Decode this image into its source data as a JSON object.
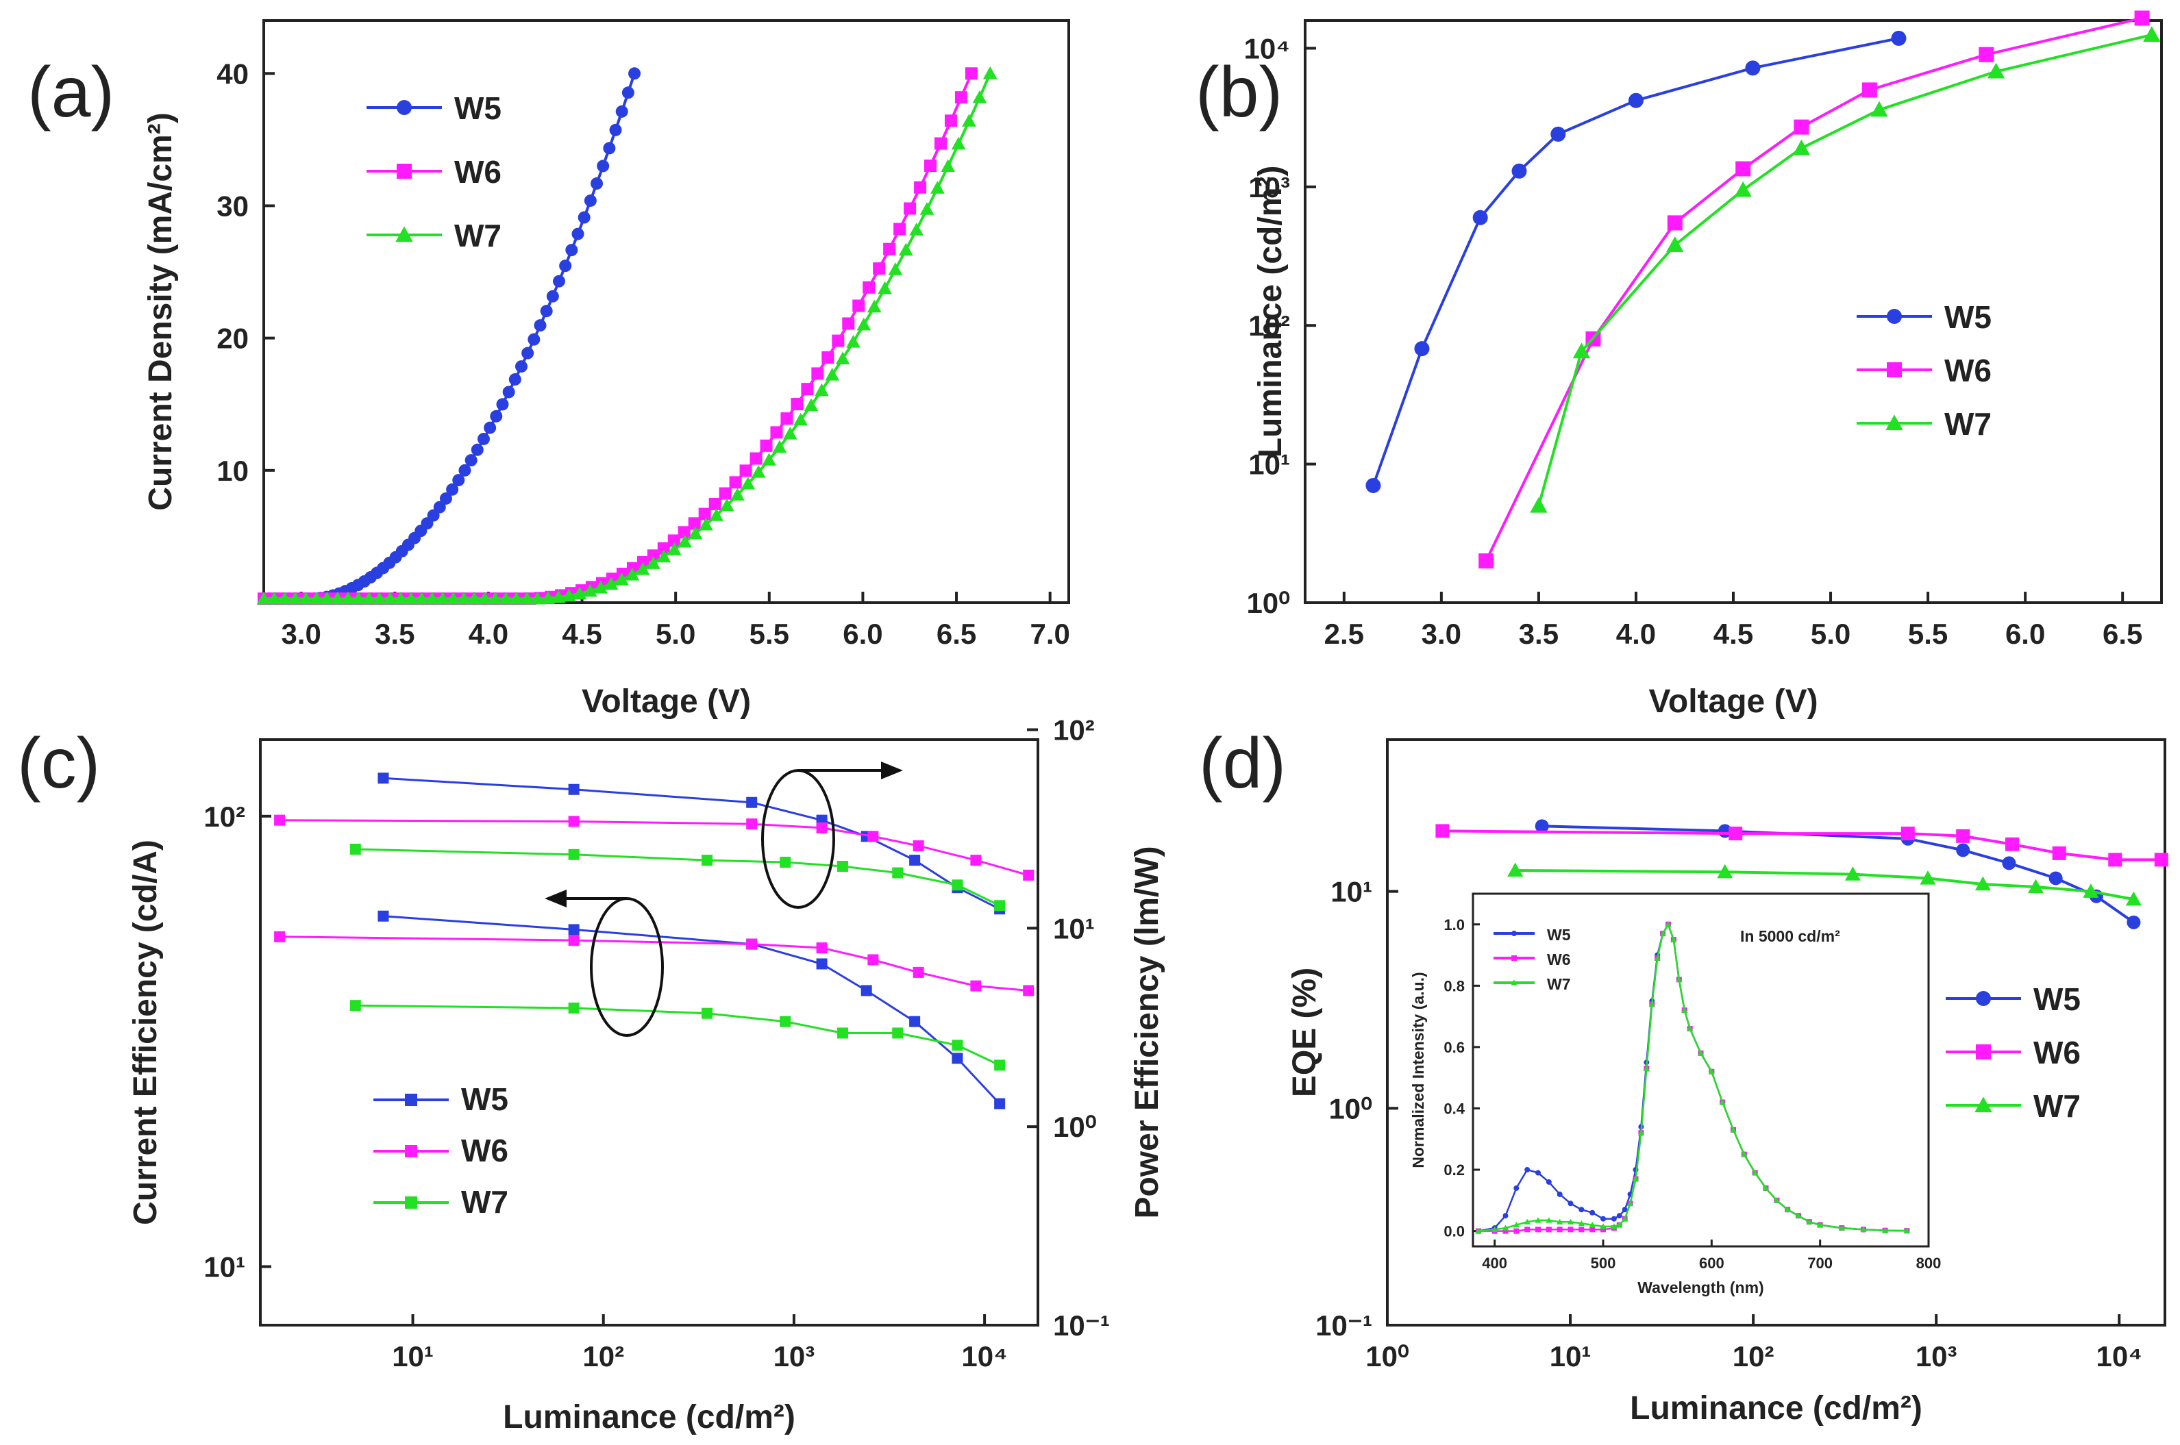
{
  "colors": {
    "W5": "#2a3fe0",
    "W6": "#ff1aff",
    "W7": "#22e022",
    "axis": "#222222"
  },
  "panels": [
    {
      "id": "a",
      "label": "(a)",
      "chart_data": {
        "type": "line",
        "xlabel": "Voltage (V)",
        "ylabel": "Current Density (mA/cm²)",
        "x_ticks": [
          "3.0",
          "3.5",
          "4.0",
          "4.5",
          "5.0",
          "5.5",
          "6.0",
          "6.5",
          "7.0"
        ],
        "y_ticks": [
          "10",
          "20",
          "30",
          "40"
        ],
        "xlim": [
          2.8,
          7.1
        ],
        "ylim": [
          0,
          44
        ],
        "legend_position": "top-left",
        "series": [
          {
            "name": "W5",
            "marker": "circle",
            "x_range": [
              2.8,
              4.78
            ],
            "knee": 3.05,
            "base": 0.3,
            "y_end": 40,
            "exp": 1.9,
            "n": 60
          },
          {
            "name": "W6",
            "marker": "square",
            "x_range": [
              2.8,
              6.58
            ],
            "knee": 4.2,
            "base": 0.3,
            "y_end": 40,
            "exp": 2.0,
            "n": 70
          },
          {
            "name": "W7",
            "marker": "triangle",
            "x_range": [
              2.8,
              6.68
            ],
            "knee": 4.25,
            "base": 0.3,
            "y_end": 40,
            "exp": 2.0,
            "n": 70
          }
        ]
      }
    },
    {
      "id": "b",
      "label": "(b)",
      "chart_data": {
        "type": "line",
        "yscale": "log",
        "xlabel": "Voltage (V)",
        "ylabel": "Luminance (cd/m²)",
        "x_ticks": [
          "2.5",
          "3.0",
          "3.5",
          "4.0",
          "4.5",
          "5.0",
          "5.5",
          "6.0",
          "6.5"
        ],
        "y_ticks": [
          "10⁰",
          "10¹",
          "10²",
          "10³",
          "10⁴"
        ],
        "xlim": [
          2.3,
          6.7
        ],
        "ylim_exp": [
          0,
          4.2
        ],
        "legend_position": "center-right",
        "series": [
          {
            "name": "W5",
            "marker": "circle",
            "x": [
              2.65,
              2.9,
              3.2,
              3.4,
              3.6,
              4.0,
              4.6,
              5.35
            ],
            "y": [
              7,
              68,
              600,
              1300,
              2400,
              4200,
              7200,
              11800
            ]
          },
          {
            "name": "W6",
            "marker": "square",
            "x": [
              3.23,
              3.78,
              4.2,
              4.55,
              4.85,
              5.2,
              5.8,
              6.6
            ],
            "y": [
              2,
              80,
              550,
              1350,
              2700,
              5000,
              9000,
              16500
            ]
          },
          {
            "name": "W7",
            "marker": "triangle",
            "x": [
              3.5,
              3.72,
              4.2,
              4.55,
              4.85,
              5.25,
              5.85,
              6.65
            ],
            "y": [
              5,
              65,
              380,
              950,
              1900,
              3600,
              6800,
              12500
            ]
          }
        ]
      }
    },
    {
      "id": "c",
      "label": "(c)",
      "chart_data": {
        "type": "line",
        "xscale": "log",
        "yscale": "log",
        "xlabel": "Luminance (cd/m²)",
        "ylabel": "Current Efficiency (cd/A)",
        "ylabel_right": "Power Efficiency (lm/W)",
        "x_ticks": [
          "10¹",
          "10²",
          "10³",
          "10⁴"
        ],
        "y_ticks": [
          "10¹",
          "10²"
        ],
        "y2_ticks": [
          "10⁻¹",
          "10⁰",
          "10¹",
          "10²"
        ],
        "xlim_exp": [
          0.2,
          4.28
        ],
        "ylim_exp": [
          0.87,
          2.17
        ],
        "y2lim_exp": [
          -1.0,
          1.95
        ],
        "legend_position": "bottom-left",
        "series": [
          {
            "name": "W5",
            "marker": "square",
            "axis": "left",
            "x": [
              7,
              70,
              600,
              1400,
              2400,
              4300,
              7200,
              12000
            ],
            "y": [
              60,
              56,
              52,
              47,
              41,
              35,
              29,
              23
            ]
          },
          {
            "name": "W6",
            "marker": "square",
            "axis": "left",
            "x": [
              2,
              70,
              600,
              1400,
              2600,
              4500,
              9000,
              17000
            ],
            "y": [
              54,
              53,
              52,
              51,
              48,
              45,
              42,
              41
            ]
          },
          {
            "name": "W7",
            "marker": "square",
            "axis": "left",
            "x": [
              5,
              70,
              350,
              900,
              1800,
              3500,
              7200,
              12000
            ],
            "y": [
              38,
              37.5,
              36.5,
              35,
              33,
              33,
              31,
              28
            ]
          },
          {
            "name": "W5",
            "marker": "square",
            "axis": "right",
            "x": [
              7,
              70,
              600,
              1400,
              2400,
              4300,
              7200,
              12000
            ],
            "y": [
              57,
              50,
              43,
              35,
              29,
              22,
              16,
              12.5
            ]
          },
          {
            "name": "W6",
            "marker": "square",
            "axis": "right",
            "x": [
              2,
              70,
              600,
              1400,
              2600,
              4500,
              9000,
              17000
            ],
            "y": [
              35,
              34.5,
              33.5,
              32,
              29,
              26,
              22,
              18.5
            ]
          },
          {
            "name": "W7",
            "marker": "square",
            "axis": "right",
            "x": [
              5,
              70,
              350,
              900,
              1800,
              3500,
              7200,
              12000
            ],
            "y": [
              25,
              23.5,
              22,
              21.5,
              20.5,
              19,
              16.5,
              13
            ]
          }
        ],
        "annotations": [
          "ellipse with arrow to the right (Power Efficiency axis)",
          "ellipse with arrow to the left (Current Efficiency axis)"
        ]
      }
    },
    {
      "id": "d",
      "label": "(d)",
      "chart_data": {
        "type": "line",
        "xscale": "log",
        "yscale": "log",
        "xlabel": "Luminance (cd/m²)",
        "ylabel": "EQE (%)",
        "x_ticks": [
          "10⁰",
          "10¹",
          "10²",
          "10³",
          "10⁴"
        ],
        "y_ticks": [
          "10⁻¹",
          "10⁰",
          "10¹"
        ],
        "xlim_exp": [
          0,
          4.25
        ],
        "ylim_exp": [
          -1,
          1.7
        ],
        "legend_position": "center-right",
        "series": [
          {
            "name": "W5",
            "marker": "circle",
            "x": [
              7,
              70,
              700,
              1400,
              2500,
              4500,
              7500,
              12000
            ],
            "y": [
              20,
              19,
              17.5,
              15.5,
              13.5,
              11.5,
              9.5,
              7.2
            ]
          },
          {
            "name": "W6",
            "marker": "square",
            "x": [
              2,
              80,
              700,
              1400,
              2600,
              4700,
              9500,
              17000
            ],
            "y": [
              19,
              18.5,
              18.5,
              18,
              16.5,
              15,
              14,
              14
            ]
          },
          {
            "name": "W7",
            "marker": "triangle",
            "x": [
              5,
              70,
              350,
              900,
              1800,
              3500,
              7000,
              12000
            ],
            "y": [
              12.5,
              12.3,
              12,
              11.5,
              10.8,
              10.5,
              10,
              9.2
            ]
          }
        ],
        "inset": {
          "type": "line",
          "title": "In 5000 cd/m²",
          "xlabel": "Wavelength (nm)",
          "ylabel": "Normalized Intensity (a.u.)",
          "x_ticks": [
            "400",
            "500",
            "600",
            "700",
            "800"
          ],
          "y_ticks": [
            "0.0",
            "0.2",
            "0.4",
            "0.6",
            "0.8",
            "1.0"
          ],
          "xlim": [
            380,
            800
          ],
          "ylim": [
            -0.05,
            1.1
          ],
          "series": [
            {
              "name": "W5",
              "marker": "circle",
              "x": [
                385,
                400,
                410,
                420,
                430,
                440,
                450,
                460,
                470,
                480,
                490,
                500,
                510,
                515,
                520,
                525,
                530,
                535,
                540,
                545,
                550,
                555,
                560,
                565,
                570,
                575,
                580,
                590,
                600,
                610,
                620,
                630,
                640,
                650,
                660,
                670,
                680,
                690,
                700,
                720,
                740,
                760,
                780
              ],
              "y": [
                0,
                0.01,
                0.05,
                0.14,
                0.2,
                0.19,
                0.16,
                0.12,
                0.09,
                0.07,
                0.06,
                0.04,
                0.04,
                0.05,
                0.07,
                0.12,
                0.2,
                0.34,
                0.55,
                0.75,
                0.9,
                0.97,
                1.0,
                0.95,
                0.82,
                0.72,
                0.66,
                0.58,
                0.52,
                0.42,
                0.33,
                0.25,
                0.19,
                0.14,
                0.1,
                0.07,
                0.05,
                0.03,
                0.02,
                0.01,
                0.005,
                0.002,
                0.001
              ]
            },
            {
              "name": "W6",
              "marker": "square",
              "x": [
                385,
                400,
                410,
                420,
                430,
                440,
                450,
                460,
                470,
                480,
                490,
                500,
                510,
                515,
                520,
                525,
                530,
                535,
                540,
                545,
                550,
                555,
                560,
                565,
                570,
                575,
                580,
                590,
                600,
                610,
                620,
                630,
                640,
                650,
                660,
                670,
                680,
                690,
                700,
                720,
                740,
                760,
                780
              ],
              "y": [
                0,
                0,
                0,
                0,
                0.005,
                0.005,
                0.005,
                0.005,
                0.005,
                0.005,
                0.005,
                0.005,
                0.01,
                0.02,
                0.04,
                0.09,
                0.17,
                0.32,
                0.53,
                0.74,
                0.89,
                0.97,
                1.0,
                0.95,
                0.82,
                0.72,
                0.66,
                0.58,
                0.52,
                0.42,
                0.33,
                0.25,
                0.19,
                0.14,
                0.1,
                0.07,
                0.05,
                0.03,
                0.02,
                0.01,
                0.005,
                0.002,
                0.001
              ]
            },
            {
              "name": "W7",
              "marker": "triangle",
              "x": [
                385,
                400,
                410,
                420,
                430,
                440,
                450,
                460,
                470,
                480,
                490,
                500,
                510,
                515,
                520,
                525,
                530,
                535,
                540,
                545,
                550,
                555,
                560,
                565,
                570,
                575,
                580,
                590,
                600,
                610,
                620,
                630,
                640,
                650,
                660,
                670,
                680,
                690,
                700,
                720,
                740,
                760,
                780
              ],
              "y": [
                0,
                0.005,
                0.01,
                0.02,
                0.03,
                0.035,
                0.035,
                0.03,
                0.03,
                0.025,
                0.02,
                0.015,
                0.015,
                0.02,
                0.04,
                0.09,
                0.17,
                0.32,
                0.53,
                0.74,
                0.89,
                0.97,
                1.0,
                0.95,
                0.82,
                0.72,
                0.66,
                0.58,
                0.52,
                0.42,
                0.33,
                0.25,
                0.19,
                0.14,
                0.1,
                0.07,
                0.05,
                0.03,
                0.02,
                0.01,
                0.005,
                0.002,
                0.001
              ]
            }
          ]
        }
      }
    }
  ]
}
